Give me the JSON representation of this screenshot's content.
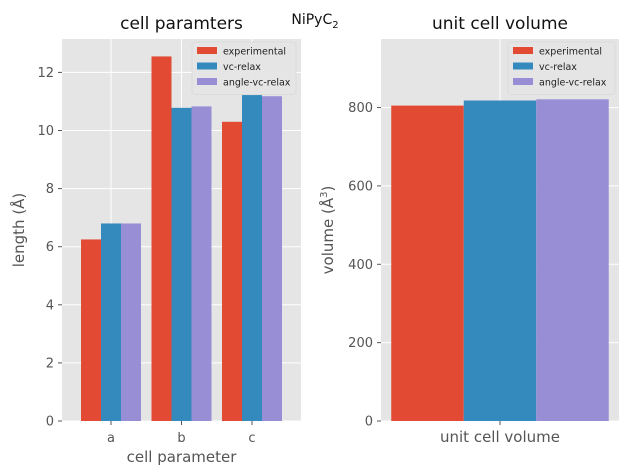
{
  "figure": {
    "suptitle": "NiPyC",
    "suptitle_sub": "2"
  },
  "chart_data": [
    {
      "type": "bar",
      "title": "cell paramters",
      "xlabel": "cell parameter",
      "ylabel": "length (Å)",
      "categories": [
        "a",
        "b",
        "c"
      ],
      "ylim": [
        0,
        13.15
      ],
      "yticks": [
        0,
        2,
        4,
        6,
        8,
        10,
        12
      ],
      "grid": true,
      "legend_position": "top-right",
      "series": [
        {
          "name": "experimental",
          "color": "#E24A33",
          "values": [
            6.25,
            12.55,
            10.3
          ]
        },
        {
          "name": "vc-relax",
          "color": "#348ABD",
          "values": [
            6.8,
            10.78,
            11.22
          ]
        },
        {
          "name": "angle-vc-relax",
          "color": "#988ED5",
          "values": [
            6.8,
            10.83,
            11.18
          ]
        }
      ]
    },
    {
      "type": "bar",
      "title": "unit cell volume",
      "xlabel": "",
      "ylabel": "volume (Å",
      "ylabel_sup": "3",
      "ylabel_end": ")",
      "categories": [
        "unit cell volume"
      ],
      "ylim": [
        0,
        975
      ],
      "yticks": [
        0,
        200,
        400,
        600,
        800
      ],
      "grid": true,
      "legend_position": "top-right",
      "series": [
        {
          "name": "experimental",
          "color": "#E24A33",
          "values": [
            805
          ]
        },
        {
          "name": "vc-relax",
          "color": "#348ABD",
          "values": [
            818
          ]
        },
        {
          "name": "angle-vc-relax",
          "color": "#988ED5",
          "values": [
            821
          ]
        }
      ]
    }
  ]
}
